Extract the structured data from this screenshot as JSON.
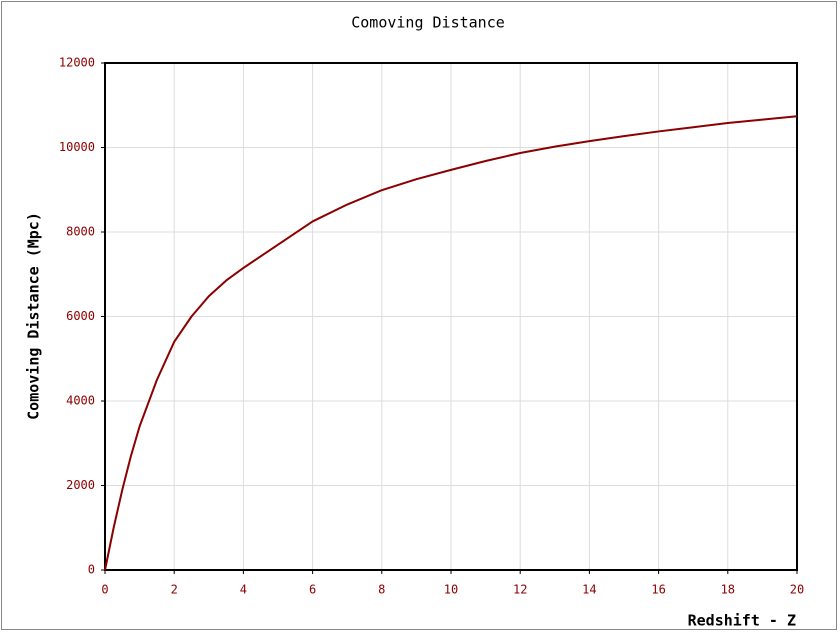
{
  "chart_data": {
    "type": "line",
    "title": "Comoving Distance",
    "x_label": "Redshift - Z",
    "y_label": "Comoving Distance (Mpc)",
    "x": [
      0,
      0.25,
      0.5,
      0.75,
      1,
      1.5,
      2,
      2.5,
      3,
      3.5,
      4,
      5,
      6,
      7,
      8,
      9,
      10,
      11,
      12,
      13,
      14,
      15,
      16,
      17,
      18,
      19,
      20
    ],
    "series": [
      {
        "name": "Comoving Distance",
        "color": "#8b0000",
        "values": [
          0,
          1000,
          1900,
          2700,
          3400,
          4500,
          5400,
          6000,
          6480,
          6850,
          7150,
          7700,
          8250,
          8650,
          8990,
          9250,
          9470,
          9680,
          9870,
          10020,
          10150,
          10270,
          10380,
          10480,
          10580,
          10660,
          10740
        ]
      }
    ],
    "xlim": [
      0,
      20
    ],
    "xticks": [
      0,
      2,
      4,
      6,
      8,
      10,
      12,
      14,
      16,
      18,
      20
    ],
    "ylim": [
      0,
      12000
    ],
    "yticks": [
      0,
      2000,
      4000,
      6000,
      8000,
      10000,
      12000
    ],
    "grid": true
  }
}
